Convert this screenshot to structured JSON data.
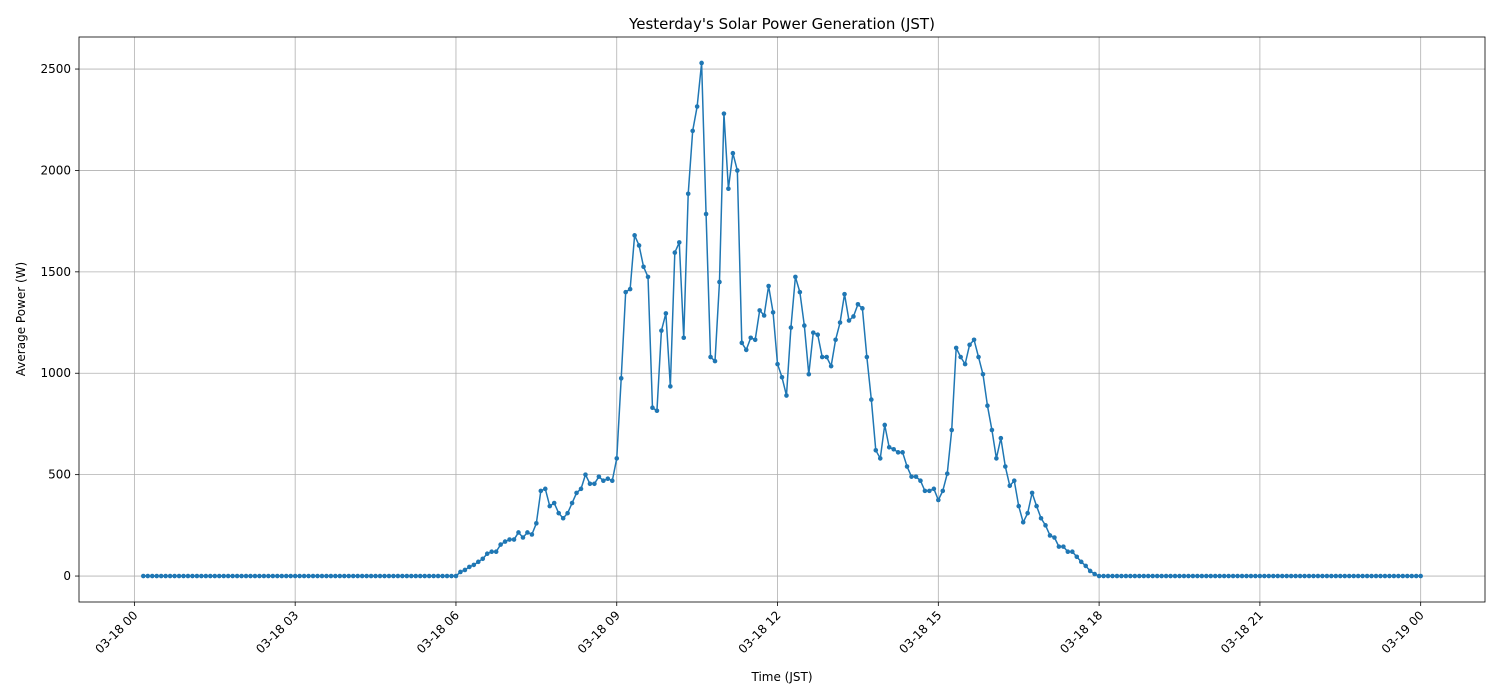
{
  "chart_data": {
    "type": "line",
    "title": "Yesterday's Solar Power Generation (JST)",
    "xlabel": "Time (JST)",
    "ylabel": "Average Power (W)",
    "color": "#1f77b4",
    "grid": true,
    "xlim": [
      "03-17 22:58",
      "03-19 01:12"
    ],
    "xticks": [
      "03-18 00",
      "03-18 03",
      "03-18 06",
      "03-18 09",
      "03-18 12",
      "03-18 15",
      "03-18 18",
      "03-18 21",
      "03-19 00"
    ],
    "ylim": [
      -128,
      2658
    ],
    "yticks": [
      0,
      500,
      1000,
      1500,
      2000,
      2500
    ],
    "x": [
      "03-18 00:10",
      "03-18 00:15",
      "03-18 00:20",
      "03-18 00:25",
      "03-18 00:30",
      "03-18 00:35",
      "03-18 00:40",
      "03-18 00:45",
      "03-18 00:50",
      "03-18 00:55",
      "03-18 01:00",
      "03-18 01:05",
      "03-18 01:10",
      "03-18 01:15",
      "03-18 01:20",
      "03-18 01:25",
      "03-18 01:30",
      "03-18 01:35",
      "03-18 01:40",
      "03-18 01:45",
      "03-18 01:50",
      "03-18 01:55",
      "03-18 02:00",
      "03-18 02:05",
      "03-18 02:10",
      "03-18 02:15",
      "03-18 02:20",
      "03-18 02:25",
      "03-18 02:30",
      "03-18 02:35",
      "03-18 02:40",
      "03-18 02:45",
      "03-18 02:50",
      "03-18 02:55",
      "03-18 03:00",
      "03-18 03:05",
      "03-18 03:10",
      "03-18 03:15",
      "03-18 03:20",
      "03-18 03:25",
      "03-18 03:30",
      "03-18 03:35",
      "03-18 03:40",
      "03-18 03:45",
      "03-18 03:50",
      "03-18 03:55",
      "03-18 04:00",
      "03-18 04:05",
      "03-18 04:10",
      "03-18 04:15",
      "03-18 04:20",
      "03-18 04:25",
      "03-18 04:30",
      "03-18 04:35",
      "03-18 04:40",
      "03-18 04:45",
      "03-18 04:50",
      "03-18 04:55",
      "03-18 05:00",
      "03-18 05:05",
      "03-18 05:10",
      "03-18 05:15",
      "03-18 05:20",
      "03-18 05:25",
      "03-18 05:30",
      "03-18 05:35",
      "03-18 05:40",
      "03-18 05:45",
      "03-18 05:50",
      "03-18 05:55",
      "03-18 06:00",
      "03-18 06:05",
      "03-18 06:10",
      "03-18 06:15",
      "03-18 06:20",
      "03-18 06:25",
      "03-18 06:30",
      "03-18 06:35",
      "03-18 06:40",
      "03-18 06:45",
      "03-18 06:50",
      "03-18 06:55",
      "03-18 07:00",
      "03-18 07:05",
      "03-18 07:10",
      "03-18 07:15",
      "03-18 07:20",
      "03-18 07:25",
      "03-18 07:30",
      "03-18 07:35",
      "03-18 07:40",
      "03-18 07:45",
      "03-18 07:50",
      "03-18 07:55",
      "03-18 08:00",
      "03-18 08:05",
      "03-18 08:10",
      "03-18 08:15",
      "03-18 08:20",
      "03-18 08:25",
      "03-18 08:30",
      "03-18 08:35",
      "03-18 08:40",
      "03-18 08:45",
      "03-18 08:50",
      "03-18 08:55",
      "03-18 09:00",
      "03-18 09:05",
      "03-18 09:10",
      "03-18 09:15",
      "03-18 09:20",
      "03-18 09:25",
      "03-18 09:30",
      "03-18 09:35",
      "03-18 09:40",
      "03-18 09:45",
      "03-18 09:50",
      "03-18 09:55",
      "03-18 10:00",
      "03-18 10:05",
      "03-18 10:10",
      "03-18 10:15",
      "03-18 10:20",
      "03-18 10:25",
      "03-18 10:30",
      "03-18 10:35",
      "03-18 10:40",
      "03-18 10:45",
      "03-18 10:50",
      "03-18 10:55",
      "03-18 11:00",
      "03-18 11:05",
      "03-18 11:10",
      "03-18 11:15",
      "03-18 11:20",
      "03-18 11:25",
      "03-18 11:30",
      "03-18 11:35",
      "03-18 11:40",
      "03-18 11:45",
      "03-18 11:50",
      "03-18 11:55",
      "03-18 12:00",
      "03-18 12:05",
      "03-18 12:10",
      "03-18 12:15",
      "03-18 12:20",
      "03-18 12:25",
      "03-18 12:30",
      "03-18 12:35",
      "03-18 12:40",
      "03-18 12:45",
      "03-18 12:50",
      "03-18 12:55",
      "03-18 13:00",
      "03-18 13:05",
      "03-18 13:10",
      "03-18 13:15",
      "03-18 13:20",
      "03-18 13:25",
      "03-18 13:30",
      "03-18 13:35",
      "03-18 13:40",
      "03-18 13:45",
      "03-18 13:50",
      "03-18 13:55",
      "03-18 14:00",
      "03-18 14:05",
      "03-18 14:10",
      "03-18 14:15",
      "03-18 14:20",
      "03-18 14:25",
      "03-18 14:30",
      "03-18 14:35",
      "03-18 14:40",
      "03-18 14:45",
      "03-18 14:50",
      "03-18 14:55",
      "03-18 15:00",
      "03-18 15:05",
      "03-18 15:10",
      "03-18 15:15",
      "03-18 15:20",
      "03-18 15:25",
      "03-18 15:30",
      "03-18 15:35",
      "03-18 15:40",
      "03-18 15:45",
      "03-18 15:50",
      "03-18 15:55",
      "03-18 16:00",
      "03-18 16:05",
      "03-18 16:10",
      "03-18 16:15",
      "03-18 16:20",
      "03-18 16:25",
      "03-18 16:30",
      "03-18 16:35",
      "03-18 16:40",
      "03-18 16:45",
      "03-18 16:50",
      "03-18 16:55",
      "03-18 17:00",
      "03-18 17:05",
      "03-18 17:10",
      "03-18 17:15",
      "03-18 17:20",
      "03-18 17:25",
      "03-18 17:30",
      "03-18 17:35",
      "03-18 17:40",
      "03-18 17:45",
      "03-18 17:50",
      "03-18 17:55",
      "03-18 18:00",
      "03-18 18:05",
      "03-18 18:10",
      "03-18 18:15",
      "03-18 18:20",
      "03-18 18:25",
      "03-18 18:30",
      "03-18 18:35",
      "03-18 18:40",
      "03-18 18:45",
      "03-18 18:50",
      "03-18 18:55",
      "03-18 19:00",
      "03-18 19:05",
      "03-18 19:10",
      "03-18 19:15",
      "03-18 19:20",
      "03-18 19:25",
      "03-18 19:30",
      "03-18 19:35",
      "03-18 19:40",
      "03-18 19:45",
      "03-18 19:50",
      "03-18 19:55",
      "03-18 20:00",
      "03-18 20:05",
      "03-18 20:10",
      "03-18 20:15",
      "03-18 20:20",
      "03-18 20:25",
      "03-18 20:30",
      "03-18 20:35",
      "03-18 20:40",
      "03-18 20:45",
      "03-18 20:50",
      "03-18 20:55",
      "03-18 21:00",
      "03-18 21:05",
      "03-18 21:10",
      "03-18 21:15",
      "03-18 21:20",
      "03-18 21:25",
      "03-18 21:30",
      "03-18 21:35",
      "03-18 21:40",
      "03-18 21:45",
      "03-18 21:50",
      "03-18 21:55",
      "03-18 22:00",
      "03-18 22:05",
      "03-18 22:10",
      "03-18 22:15",
      "03-18 22:20",
      "03-18 22:25",
      "03-18 22:30",
      "03-18 22:35",
      "03-18 22:40",
      "03-18 22:45",
      "03-18 22:50",
      "03-18 22:55",
      "03-18 23:00",
      "03-18 23:05",
      "03-18 23:10",
      "03-18 23:15",
      "03-18 23:20",
      "03-18 23:25",
      "03-18 23:30",
      "03-18 23:35",
      "03-18 23:40",
      "03-18 23:45",
      "03-18 23:50",
      "03-18 23:55",
      "03-19 00:00"
    ],
    "values": [
      0,
      0,
      0,
      0,
      0,
      0,
      0,
      0,
      0,
      0,
      0,
      0,
      0,
      0,
      0,
      0,
      0,
      0,
      0,
      0,
      0,
      0,
      0,
      0,
      0,
      0,
      0,
      0,
      0,
      0,
      0,
      0,
      0,
      0,
      0,
      0,
      0,
      0,
      0,
      0,
      0,
      0,
      0,
      0,
      0,
      0,
      0,
      0,
      0,
      0,
      0,
      0,
      0,
      0,
      0,
      0,
      0,
      0,
      0,
      0,
      0,
      0,
      0,
      0,
      0,
      0,
      0,
      0,
      0,
      0,
      0,
      20,
      30,
      45,
      55,
      70,
      85,
      110,
      120,
      120,
      155,
      170,
      180,
      180,
      215,
      190,
      215,
      205,
      260,
      420,
      430,
      345,
      360,
      310,
      285,
      310,
      360,
      410,
      430,
      500,
      455,
      455,
      490,
      470,
      480,
      470,
      580,
      975,
      1400,
      1415,
      1680,
      1630,
      1525,
      1475,
      830,
      815,
      1210,
      1295,
      935,
      1595,
      1645,
      1175,
      1885,
      2195,
      2315,
      2530,
      1785,
      1080,
      1060,
      1450,
      2280,
      1910,
      2085,
      2000,
      1150,
      1115,
      1175,
      1165,
      1310,
      1285,
      1430,
      1300,
      1045,
      980,
      890,
      1225,
      1475,
      1400,
      1235,
      995,
      1200,
      1190,
      1080,
      1080,
      1035,
      1165,
      1250,
      1390,
      1260,
      1280,
      1340,
      1320,
      1080,
      870,
      620,
      580,
      745,
      635,
      625,
      610,
      610,
      540,
      490,
      490,
      470,
      420,
      420,
      430,
      375,
      420,
      505,
      720,
      1125,
      1080,
      1045,
      1140,
      1165,
      1080,
      995,
      840,
      720,
      580,
      680,
      540,
      445,
      470,
      345,
      265,
      310,
      410,
      345,
      285,
      250,
      200,
      190,
      145,
      145,
      120,
      120,
      95,
      70,
      50,
      25,
      10,
      0,
      0,
      0,
      0,
      0,
      0,
      0,
      0,
      0,
      0,
      0,
      0,
      0,
      0,
      0,
      0,
      0,
      0,
      0,
      0,
      0,
      0,
      0,
      0,
      0,
      0,
      0,
      0,
      0,
      0,
      0,
      0,
      0,
      0,
      0,
      0,
      0,
      0,
      0,
      0,
      0,
      0,
      0,
      0,
      0,
      0,
      0,
      0,
      0,
      0,
      0,
      0,
      0,
      0,
      0,
      0,
      0,
      0,
      0,
      0,
      0,
      0,
      0,
      0,
      0,
      0,
      0,
      0,
      0,
      0,
      0,
      0,
      0
    ]
  }
}
